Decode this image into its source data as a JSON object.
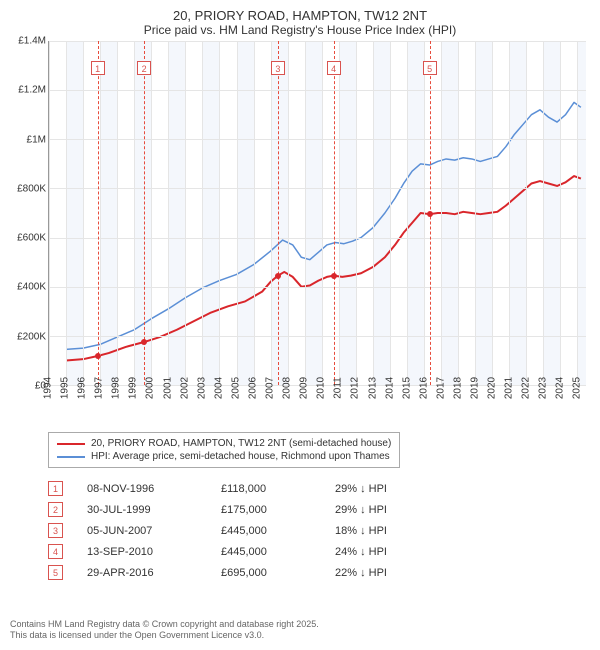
{
  "title": "20, PRIORY ROAD, HAMPTON, TW12 2NT",
  "subtitle": "Price paid vs. HM Land Registry's House Price Index (HPI)",
  "chart": {
    "type": "line",
    "background_color": "#ffffff",
    "grid_color": "#e5e5e5",
    "axis_color": "#999999",
    "x": {
      "min": 1994,
      "max": 2025.5,
      "ticks": [
        1994,
        1995,
        1996,
        1997,
        1998,
        1999,
        2000,
        2001,
        2002,
        2003,
        2004,
        2005,
        2006,
        2007,
        2008,
        2009,
        2010,
        2011,
        2012,
        2013,
        2014,
        2015,
        2016,
        2017,
        2018,
        2019,
        2020,
        2021,
        2022,
        2023,
        2024,
        2025
      ]
    },
    "y": {
      "min": 0,
      "max": 1400000,
      "ticks": [
        {
          "v": 0,
          "label": "£0"
        },
        {
          "v": 200000,
          "label": "£200K"
        },
        {
          "v": 400000,
          "label": "£400K"
        },
        {
          "v": 600000,
          "label": "£600K"
        },
        {
          "v": 800000,
          "label": "£800K"
        },
        {
          "v": 1000000,
          "label": "£1M"
        },
        {
          "v": 1200000,
          "label": "£1.2M"
        },
        {
          "v": 1400000,
          "label": "£1.4M"
        }
      ]
    },
    "band_color": "#e6eef9",
    "marker_line_color": "#e74c3c",
    "marker_box_border": "#d9534f",
    "marker_box_text": "#d9534f",
    "series": [
      {
        "id": "property",
        "label": "20, PRIORY ROAD, HAMPTON, TW12 2NT (semi-detached house)",
        "color": "#d9262b",
        "width": 2,
        "points": [
          [
            1995.0,
            100000
          ],
          [
            1996.0,
            105000
          ],
          [
            1996.85,
            118000
          ],
          [
            1997.5,
            130000
          ],
          [
            1998.5,
            155000
          ],
          [
            1999.58,
            175000
          ],
          [
            2000.5,
            195000
          ],
          [
            2001.5,
            225000
          ],
          [
            2002.5,
            260000
          ],
          [
            2003.5,
            295000
          ],
          [
            2004.5,
            320000
          ],
          [
            2005.5,
            340000
          ],
          [
            2006.5,
            380000
          ],
          [
            2007.0,
            420000
          ],
          [
            2007.43,
            445000
          ],
          [
            2007.8,
            460000
          ],
          [
            2008.3,
            440000
          ],
          [
            2008.8,
            400000
          ],
          [
            2009.3,
            405000
          ],
          [
            2009.8,
            425000
          ],
          [
            2010.3,
            440000
          ],
          [
            2010.7,
            445000
          ],
          [
            2011.2,
            440000
          ],
          [
            2011.7,
            445000
          ],
          [
            2012.3,
            455000
          ],
          [
            2013.0,
            480000
          ],
          [
            2013.7,
            520000
          ],
          [
            2014.3,
            570000
          ],
          [
            2014.8,
            620000
          ],
          [
            2015.3,
            660000
          ],
          [
            2015.8,
            700000
          ],
          [
            2016.33,
            695000
          ],
          [
            2016.8,
            700000
          ],
          [
            2017.3,
            700000
          ],
          [
            2017.8,
            695000
          ],
          [
            2018.3,
            705000
          ],
          [
            2018.8,
            700000
          ],
          [
            2019.3,
            695000
          ],
          [
            2019.8,
            700000
          ],
          [
            2020.3,
            705000
          ],
          [
            2020.8,
            730000
          ],
          [
            2021.3,
            760000
          ],
          [
            2021.8,
            790000
          ],
          [
            2022.3,
            820000
          ],
          [
            2022.8,
            830000
          ],
          [
            2023.3,
            820000
          ],
          [
            2023.8,
            810000
          ],
          [
            2024.3,
            825000
          ],
          [
            2024.8,
            850000
          ],
          [
            2025.2,
            840000
          ]
        ]
      },
      {
        "id": "hpi",
        "label": "HPI: Average price, semi-detached house, Richmond upon Thames",
        "color": "#5b8fd6",
        "width": 1.5,
        "points": [
          [
            1995.0,
            145000
          ],
          [
            1996.0,
            150000
          ],
          [
            1997.0,
            165000
          ],
          [
            1998.0,
            195000
          ],
          [
            1999.0,
            225000
          ],
          [
            2000.0,
            270000
          ],
          [
            2001.0,
            310000
          ],
          [
            2002.0,
            355000
          ],
          [
            2003.0,
            395000
          ],
          [
            2004.0,
            425000
          ],
          [
            2005.0,
            450000
          ],
          [
            2006.0,
            490000
          ],
          [
            2007.0,
            545000
          ],
          [
            2007.7,
            590000
          ],
          [
            2008.3,
            570000
          ],
          [
            2008.8,
            520000
          ],
          [
            2009.3,
            510000
          ],
          [
            2009.8,
            540000
          ],
          [
            2010.3,
            570000
          ],
          [
            2010.8,
            580000
          ],
          [
            2011.3,
            575000
          ],
          [
            2011.8,
            585000
          ],
          [
            2012.3,
            600000
          ],
          [
            2013.0,
            640000
          ],
          [
            2013.7,
            700000
          ],
          [
            2014.3,
            760000
          ],
          [
            2014.8,
            820000
          ],
          [
            2015.3,
            870000
          ],
          [
            2015.8,
            900000
          ],
          [
            2016.33,
            895000
          ],
          [
            2016.8,
            910000
          ],
          [
            2017.3,
            920000
          ],
          [
            2017.8,
            915000
          ],
          [
            2018.3,
            925000
          ],
          [
            2018.8,
            920000
          ],
          [
            2019.3,
            910000
          ],
          [
            2019.8,
            920000
          ],
          [
            2020.3,
            930000
          ],
          [
            2020.8,
            970000
          ],
          [
            2021.3,
            1020000
          ],
          [
            2021.8,
            1060000
          ],
          [
            2022.3,
            1100000
          ],
          [
            2022.8,
            1120000
          ],
          [
            2023.3,
            1090000
          ],
          [
            2023.8,
            1070000
          ],
          [
            2024.3,
            1100000
          ],
          [
            2024.8,
            1150000
          ],
          [
            2025.2,
            1130000
          ]
        ]
      }
    ],
    "transactions": [
      {
        "n": 1,
        "x": 1996.85,
        "price": 118000
      },
      {
        "n": 2,
        "x": 1999.58,
        "price": 175000
      },
      {
        "n": 3,
        "x": 2007.43,
        "price": 445000
      },
      {
        "n": 4,
        "x": 2010.7,
        "price": 445000
      },
      {
        "n": 5,
        "x": 2016.33,
        "price": 695000
      }
    ]
  },
  "legend": {
    "series1": "20, PRIORY ROAD, HAMPTON, TW12 2NT (semi-detached house)",
    "series2": "HPI: Average price, semi-detached house, Richmond upon Thames"
  },
  "table": [
    {
      "n": "1",
      "date": "08-NOV-1996",
      "price": "£118,000",
      "diff": "29% ↓ HPI"
    },
    {
      "n": "2",
      "date": "30-JUL-1999",
      "price": "£175,000",
      "diff": "29% ↓ HPI"
    },
    {
      "n": "3",
      "date": "05-JUN-2007",
      "price": "£445,000",
      "diff": "18% ↓ HPI"
    },
    {
      "n": "4",
      "date": "13-SEP-2010",
      "price": "£445,000",
      "diff": "24% ↓ HPI"
    },
    {
      "n": "5",
      "date": "29-APR-2016",
      "price": "£695,000",
      "diff": "22% ↓ HPI"
    }
  ],
  "footnote": {
    "l1": "Contains HM Land Registry data © Crown copyright and database right 2025.",
    "l2": "This data is licensed under the Open Government Licence v3.0."
  }
}
